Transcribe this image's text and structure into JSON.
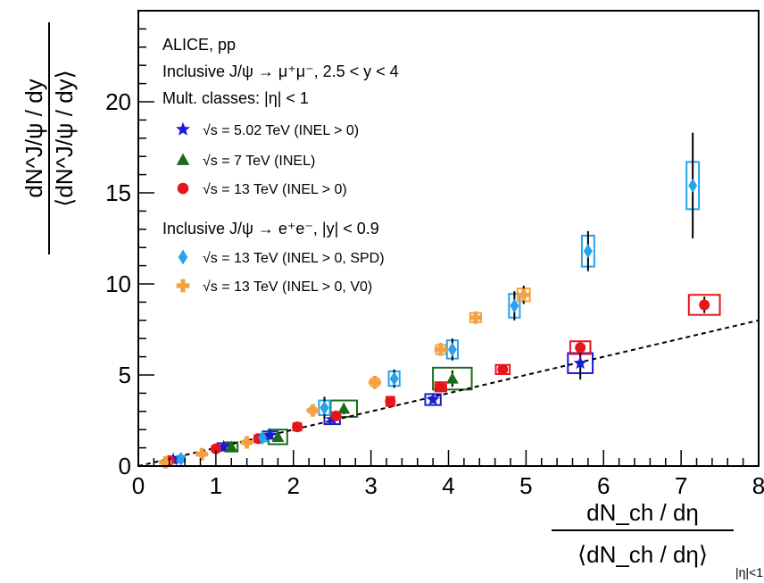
{
  "chart_data": {
    "type": "scatter",
    "title": "ALICE, pp",
    "annotations": {
      "line1": "ALICE, pp",
      "line2": "Inclusive J/ψ → μ⁺μ⁻, 2.5 < y < 4",
      "line3": "Mult. classes: |η| < 1",
      "line4": "Inclusive J/ψ → e⁺e⁻, |y| < 0.9"
    },
    "xlabel": {
      "num": "dN_ch / dη",
      "den": "⟨dN_ch / dη⟩",
      "sub": "|η|<1"
    },
    "ylabel": {
      "num": "dN^J/ψ / dy",
      "den": "⟨dN^J/ψ / dy⟩"
    },
    "xlim": [
      0,
      8
    ],
    "ylim": [
      0,
      25
    ],
    "x_ticks": [
      "0",
      "1",
      "2",
      "3",
      "4",
      "5",
      "6",
      "7",
      "8"
    ],
    "y_ticks": [
      "0",
      "5",
      "10",
      "15",
      "20"
    ],
    "reference_line": {
      "style": "dashed",
      "x": [
        0,
        8
      ],
      "y": [
        0,
        8
      ]
    },
    "series": [
      {
        "name": "√s = 5.02 TeV (INEL > 0)",
        "marker": "star",
        "color": "#1a1adb",
        "points": [
          {
            "x": 0.45,
            "y": 0.35,
            "ey": 0.1,
            "bx": 0.06,
            "by": 0.15
          },
          {
            "x": 1.1,
            "y": 1.05,
            "ey": 0.1,
            "bx": 0.08,
            "by": 0.2
          },
          {
            "x": 1.7,
            "y": 1.7,
            "ey": 0.12,
            "bx": 0.1,
            "by": 0.2
          },
          {
            "x": 2.5,
            "y": 2.55,
            "ey": 0.15,
            "bx": 0.1,
            "by": 0.25
          },
          {
            "x": 3.8,
            "y": 3.65,
            "ey": 0.2,
            "bx": 0.1,
            "by": 0.3
          },
          {
            "x": 5.7,
            "y": 5.65,
            "ey": 0.9,
            "bx": 0.16,
            "by": 0.55
          }
        ]
      },
      {
        "name": "√s = 7 TeV (INEL)",
        "marker": "triangle",
        "color": "#1a6b1a",
        "points": [
          {
            "x": 1.2,
            "y": 1.05,
            "ey": 0.1,
            "bx": 0.08,
            "by": 0.25
          },
          {
            "x": 1.8,
            "y": 1.6,
            "ey": 0.15,
            "bx": 0.12,
            "by": 0.4
          },
          {
            "x": 2.65,
            "y": 3.15,
            "ey": 0.3,
            "bx": 0.17,
            "by": 0.45
          },
          {
            "x": 4.05,
            "y": 4.8,
            "ey": 0.45,
            "bx": 0.25,
            "by": 0.6
          }
        ]
      },
      {
        "name": "√s = 13 TeV (INEL > 0)",
        "marker": "circle",
        "color": "#e8141c",
        "points": [
          {
            "x": 0.4,
            "y": 0.3,
            "ey": 0.05,
            "bx": 0.05,
            "by": 0.12
          },
          {
            "x": 1.0,
            "y": 0.95,
            "ey": 0.08,
            "bx": 0.05,
            "by": 0.15
          },
          {
            "x": 1.55,
            "y": 1.5,
            "ey": 0.1,
            "bx": 0.05,
            "by": 0.2
          },
          {
            "x": 2.05,
            "y": 2.15,
            "ey": 0.1,
            "bx": 0.05,
            "by": 0.2
          },
          {
            "x": 2.55,
            "y": 2.75,
            "ey": 0.12,
            "bx": 0.05,
            "by": 0.2
          },
          {
            "x": 3.25,
            "y": 3.55,
            "ey": 0.15,
            "bx": 0.05,
            "by": 0.25
          },
          {
            "x": 3.9,
            "y": 4.35,
            "ey": 0.2,
            "bx": 0.07,
            "by": 0.25
          },
          {
            "x": 4.7,
            "y": 5.3,
            "ey": 0.2,
            "bx": 0.09,
            "by": 0.25
          },
          {
            "x": 5.7,
            "y": 6.5,
            "ey": 0.3,
            "bx": 0.13,
            "by": 0.35
          },
          {
            "x": 7.3,
            "y": 8.85,
            "ey": 0.45,
            "bx": 0.2,
            "by": 0.55
          }
        ]
      },
      {
        "name": "√s = 13 TeV (INEL > 0, SPD)",
        "marker": "diamond",
        "color": "#26a3ee",
        "points": [
          {
            "x": 0.55,
            "y": 0.4,
            "ey": 0.1,
            "bx": 0.05,
            "by": 0.15
          },
          {
            "x": 1.6,
            "y": 1.55,
            "ey": 0.15,
            "bx": 0.07,
            "by": 0.2
          },
          {
            "x": 2.4,
            "y": 3.2,
            "ey": 0.6,
            "bx": 0.07,
            "by": 0.4
          },
          {
            "x": 3.3,
            "y": 4.8,
            "ey": 0.5,
            "bx": 0.07,
            "by": 0.4
          },
          {
            "x": 4.05,
            "y": 6.4,
            "ey": 0.6,
            "bx": 0.07,
            "by": 0.5
          },
          {
            "x": 4.85,
            "y": 8.8,
            "ey": 0.8,
            "bx": 0.07,
            "by": 0.65
          },
          {
            "x": 5.8,
            "y": 11.8,
            "ey": 1.1,
            "bx": 0.08,
            "by": 0.85
          },
          {
            "x": 7.15,
            "y": 15.4,
            "ey": 2.9,
            "bx": 0.08,
            "by": 1.3
          }
        ]
      },
      {
        "name": "√s = 13 TeV (INEL > 0, V0)",
        "marker": "cross",
        "color": "#f5a142",
        "points": [
          {
            "x": 0.35,
            "y": 0.2,
            "ey": 0.05,
            "bx": 0.04,
            "by": 0.1
          },
          {
            "x": 0.82,
            "y": 0.65,
            "ey": 0.05,
            "bx": 0.04,
            "by": 0.1
          },
          {
            "x": 1.4,
            "y": 1.3,
            "ey": 0.08,
            "bx": 0.04,
            "by": 0.12
          },
          {
            "x": 2.25,
            "y": 3.05,
            "ey": 0.12,
            "bx": 0.04,
            "by": 0.15
          },
          {
            "x": 3.05,
            "y": 4.6,
            "ey": 0.35,
            "bx": 0.05,
            "by": 0.2
          },
          {
            "x": 3.9,
            "y": 6.4,
            "ey": 0.35,
            "bx": 0.06,
            "by": 0.25
          },
          {
            "x": 4.35,
            "y": 8.15,
            "ey": 0.2,
            "bx": 0.07,
            "by": 0.25
          },
          {
            "x": 4.97,
            "y": 9.4,
            "ey": 0.5,
            "bx": 0.08,
            "by": 0.35
          }
        ]
      }
    ]
  }
}
